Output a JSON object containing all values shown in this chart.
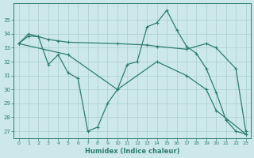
{
  "line1_x": [
    0,
    1,
    2,
    3,
    4,
    5,
    6,
    7,
    8,
    9,
    10,
    11,
    12,
    13,
    14,
    15,
    16,
    17,
    18,
    19,
    20,
    21,
    22,
    23
  ],
  "line1_y": [
    33.3,
    34.0,
    33.8,
    31.8,
    32.5,
    31.2,
    30.8,
    27.0,
    27.3,
    29.0,
    30.0,
    31.8,
    32.0,
    34.5,
    34.8,
    35.7,
    34.3,
    33.1,
    32.6,
    31.5,
    29.8,
    27.8,
    27.0,
    26.8
  ],
  "line2_x": [
    0,
    1,
    2,
    3,
    4,
    5,
    10,
    13,
    14,
    17,
    19,
    20,
    22,
    23
  ],
  "line2_y": [
    33.3,
    33.85,
    33.8,
    33.6,
    33.5,
    33.4,
    33.3,
    33.2,
    33.1,
    32.9,
    33.3,
    33.0,
    31.5,
    27.0
  ],
  "line3_x": [
    0,
    5,
    10,
    14,
    17,
    19,
    20,
    23
  ],
  "line3_y": [
    33.3,
    32.5,
    30.0,
    32.0,
    31.0,
    30.0,
    28.5,
    26.8
  ],
  "color": "#2e7d6e",
  "bg_color": "#cce8ea",
  "grid_color": "#aacfcf",
  "xlabel": "Humidex (Indice chaleur)",
  "ylim": [
    26.5,
    36.2
  ],
  "xlim": [
    -0.5,
    23.5
  ],
  "yticks": [
    27,
    28,
    29,
    30,
    31,
    32,
    33,
    34,
    35
  ],
  "xticks": [
    0,
    1,
    2,
    3,
    4,
    5,
    6,
    7,
    8,
    9,
    10,
    11,
    12,
    13,
    14,
    15,
    16,
    17,
    18,
    19,
    20,
    21,
    22,
    23
  ]
}
